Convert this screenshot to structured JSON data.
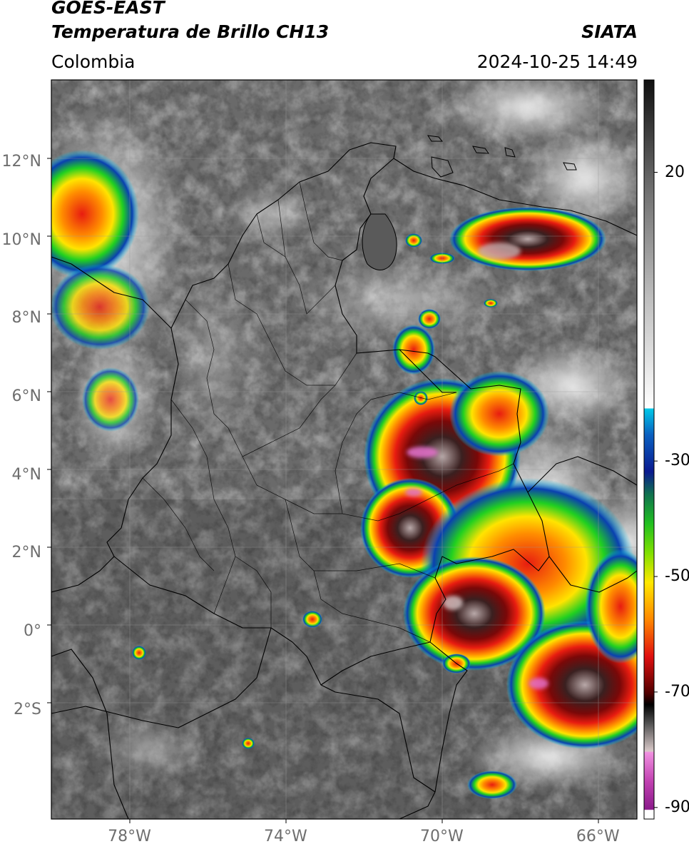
{
  "header": {
    "satellite": "GOES-EAST",
    "product": "Temperatura de Brillo CH13",
    "region": "Colombia",
    "source": "SIATA",
    "datetime": "2024-10-25 14:49"
  },
  "axes": {
    "lat_labels": [
      {
        "label": "12°N",
        "lat": 12
      },
      {
        "label": "10°N",
        "lat": 10
      },
      {
        "label": "8°N",
        "lat": 8
      },
      {
        "label": "6°N",
        "lat": 6
      },
      {
        "label": "4°N",
        "lat": 4
      },
      {
        "label": "2°N",
        "lat": 2
      },
      {
        "label": "0°",
        "lat": 0
      },
      {
        "label": "2°S",
        "lat": -2
      }
    ],
    "lon_labels": [
      {
        "label": "78°W",
        "lon": -78
      },
      {
        "label": "74°W",
        "lon": -74
      },
      {
        "label": "70°W",
        "lon": -70
      },
      {
        "label": "66°W",
        "lon": -66
      }
    ],
    "lat_range": [
      -4.8,
      14.1
    ],
    "lon_range": [
      -80.0,
      -65.0
    ]
  },
  "colorbar": {
    "range": [
      -92,
      36
    ],
    "tick_labels": [
      {
        "label": "20",
        "value": 20
      },
      {
        "label": "-30",
        "value": -30
      },
      {
        "label": "-50",
        "value": -50
      },
      {
        "label": "-70",
        "value": -70
      },
      {
        "label": "-90",
        "value": -90
      }
    ]
  },
  "colors": {
    "cloud_very_cold_pink": "#e070c8",
    "cold_black": "#140808",
    "dark_red": "#8a0a0a",
    "red": "#e81c10",
    "orange": "#ff8c00",
    "yellow": "#ffe400",
    "green": "#20d020",
    "blue": "#0a32a0",
    "cyan": "#00c8e8",
    "border": "#000000"
  }
}
